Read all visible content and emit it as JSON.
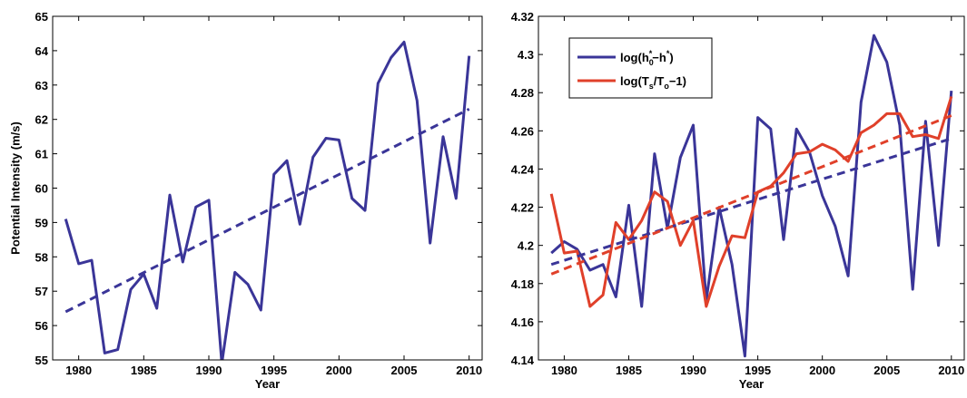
{
  "chart_data": [
    {
      "type": "line",
      "xlabel": "Year",
      "ylabel": "Potential Intensity (m/s)",
      "xlim": [
        1978,
        2011
      ],
      "ylim": [
        55,
        65
      ],
      "xticks": [
        1980,
        1985,
        1990,
        1995,
        2000,
        2005,
        2010
      ],
      "yticks": [
        55,
        56,
        57,
        58,
        59,
        60,
        61,
        62,
        63,
        64,
        65
      ],
      "grid": false,
      "series": [
        {
          "style": "solid",
          "color": "#3a3598",
          "x": [
            1979,
            1980,
            1981,
            1982,
            1983,
            1984,
            1985,
            1986,
            1987,
            1988,
            1989,
            1990,
            1991,
            1992,
            1993,
            1994,
            1995,
            1996,
            1997,
            1998,
            1999,
            2000,
            2001,
            2002,
            2003,
            2004,
            2005,
            2006,
            2007,
            2008,
            2009,
            2010
          ],
          "y": [
            59.1,
            57.8,
            57.9,
            55.2,
            55.3,
            57.05,
            57.5,
            56.5,
            59.8,
            57.85,
            59.45,
            59.65,
            54.9,
            57.55,
            57.2,
            56.45,
            60.4,
            60.8,
            58.95,
            60.9,
            61.45,
            61.4,
            59.7,
            59.35,
            63.05,
            63.8,
            64.25,
            62.55,
            58.4,
            61.5,
            59.7,
            63.85
          ]
        },
        {
          "style": "dashed",
          "color": "#3a3598",
          "x": [
            1979,
            2010
          ],
          "y": [
            56.4,
            62.3
          ]
        }
      ]
    },
    {
      "type": "line",
      "xlabel": "Year",
      "ylabel": "",
      "xlim": [
        1978,
        2011
      ],
      "ylim": [
        4.14,
        4.32
      ],
      "xticks": [
        1980,
        1985,
        1990,
        1995,
        2000,
        2005,
        2010
      ],
      "yticks": [
        "4.14",
        "4.16",
        "4.18",
        "4.2",
        "4.22",
        "4.24",
        "4.26",
        "4.28",
        "4.3",
        "4.32"
      ],
      "grid": false,
      "legend_position": "top-left",
      "legend": {
        "blue": {
          "pre": "log(h",
          "sub1": "0",
          "sup1": "*",
          "mid": "−h",
          "sup2": "*",
          "post": ")"
        },
        "red": {
          "pre": "log(T",
          "sub1": "s",
          "mid": "/T",
          "sub2": "o",
          "post": "−1)"
        }
      },
      "series": [
        {
          "style": "solid",
          "color": "#3a3598",
          "x": [
            1979,
            1980,
            1981,
            1982,
            1983,
            1984,
            1985,
            1986,
            1987,
            1988,
            1989,
            1990,
            1991,
            1992,
            1993,
            1994,
            1995,
            1996,
            1997,
            1998,
            1999,
            2000,
            2001,
            2002,
            2003,
            2004,
            2005,
            2006,
            2007,
            2008,
            2009,
            2010
          ],
          "y": [
            4.196,
            4.202,
            4.198,
            4.187,
            4.19,
            4.173,
            4.221,
            4.168,
            4.248,
            4.209,
            4.246,
            4.263,
            4.171,
            4.22,
            4.19,
            4.142,
            4.267,
            4.261,
            4.203,
            4.261,
            4.249,
            4.226,
            4.21,
            4.184,
            4.275,
            4.31,
            4.296,
            4.263,
            4.177,
            4.265,
            4.2,
            4.281
          ]
        },
        {
          "style": "solid",
          "color": "#e0402a",
          "x": [
            1979,
            1980,
            1981,
            1982,
            1983,
            1984,
            1985,
            1986,
            1987,
            1988,
            1989,
            1990,
            1991,
            1992,
            1993,
            1994,
            1995,
            1996,
            1997,
            1998,
            1999,
            2000,
            2001,
            2002,
            2003,
            2004,
            2005,
            2006,
            2007,
            2008,
            2009,
            2010
          ],
          "y": [
            4.227,
            4.196,
            4.197,
            4.168,
            4.174,
            4.212,
            4.203,
            4.213,
            4.228,
            4.223,
            4.2,
            4.213,
            4.168,
            4.189,
            4.205,
            4.204,
            4.228,
            4.231,
            4.238,
            4.248,
            4.249,
            4.253,
            4.25,
            4.244,
            4.259,
            4.263,
            4.269,
            4.269,
            4.257,
            4.258,
            4.256,
            4.278
          ]
        },
        {
          "style": "dashed",
          "color": "#3a3598",
          "x": [
            1979,
            2010
          ],
          "y": [
            4.19,
            4.256
          ]
        },
        {
          "style": "dashed",
          "color": "#e0402a",
          "x": [
            1979,
            2010
          ],
          "y": [
            4.185,
            4.268
          ]
        }
      ]
    }
  ]
}
